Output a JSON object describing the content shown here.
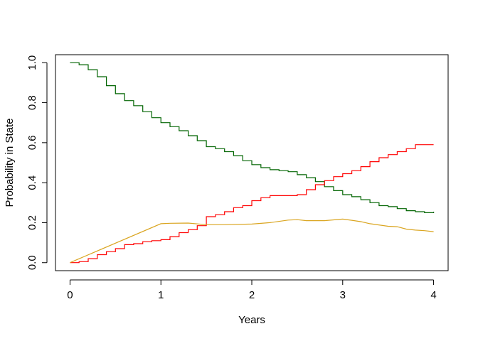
{
  "chart_data": {
    "type": "line",
    "xlabel": "Years",
    "ylabel": "Probability in State",
    "xlim": [
      -0.16,
      4.16
    ],
    "ylim": [
      -0.04,
      1.04
    ],
    "x_ticks": [
      0,
      1,
      2,
      3,
      4
    ],
    "x_tick_labels": [
      "0",
      "1",
      "2",
      "3",
      "4"
    ],
    "y_ticks": [
      0.0,
      0.2,
      0.4,
      0.6,
      0.8,
      1.0
    ],
    "y_tick_labels": [
      "0.0",
      "0.2",
      "0.4",
      "0.6",
      "0.8",
      "1.0"
    ],
    "grid": false,
    "series": [
      {
        "color": "#006400",
        "step": true,
        "points": [
          [
            0,
            1.0
          ],
          [
            0.1,
            0.99
          ],
          [
            0.2,
            0.965
          ],
          [
            0.3,
            0.93
          ],
          [
            0.4,
            0.885
          ],
          [
            0.5,
            0.845
          ],
          [
            0.6,
            0.81
          ],
          [
            0.7,
            0.785
          ],
          [
            0.8,
            0.755
          ],
          [
            0.9,
            0.725
          ],
          [
            1.0,
            0.7
          ],
          [
            1.1,
            0.68
          ],
          [
            1.2,
            0.66
          ],
          [
            1.3,
            0.635
          ],
          [
            1.4,
            0.61
          ],
          [
            1.5,
            0.58
          ],
          [
            1.6,
            0.57
          ],
          [
            1.7,
            0.555
          ],
          [
            1.8,
            0.535
          ],
          [
            1.9,
            0.51
          ],
          [
            2.0,
            0.49
          ],
          [
            2.1,
            0.475
          ],
          [
            2.2,
            0.465
          ],
          [
            2.3,
            0.46
          ],
          [
            2.4,
            0.455
          ],
          [
            2.5,
            0.44
          ],
          [
            2.6,
            0.425
          ],
          [
            2.7,
            0.405
          ],
          [
            2.8,
            0.38
          ],
          [
            2.9,
            0.36
          ],
          [
            3.0,
            0.34
          ],
          [
            3.1,
            0.33
          ],
          [
            3.2,
            0.315
          ],
          [
            3.3,
            0.3
          ],
          [
            3.4,
            0.285
          ],
          [
            3.5,
            0.28
          ],
          [
            3.6,
            0.27
          ],
          [
            3.7,
            0.26
          ],
          [
            3.8,
            0.255
          ],
          [
            3.9,
            0.25
          ],
          [
            4.0,
            0.255
          ]
        ]
      },
      {
        "color": "#ff0000",
        "step": true,
        "points": [
          [
            0,
            0.0
          ],
          [
            0.1,
            0.005
          ],
          [
            0.2,
            0.02
          ],
          [
            0.3,
            0.04
          ],
          [
            0.4,
            0.055
          ],
          [
            0.5,
            0.07
          ],
          [
            0.6,
            0.09
          ],
          [
            0.7,
            0.095
          ],
          [
            0.8,
            0.105
          ],
          [
            0.9,
            0.11
          ],
          [
            1.0,
            0.115
          ],
          [
            1.1,
            0.13
          ],
          [
            1.2,
            0.15
          ],
          [
            1.3,
            0.165
          ],
          [
            1.4,
            0.185
          ],
          [
            1.5,
            0.23
          ],
          [
            1.6,
            0.24
          ],
          [
            1.7,
            0.255
          ],
          [
            1.8,
            0.275
          ],
          [
            1.9,
            0.285
          ],
          [
            2.0,
            0.31
          ],
          [
            2.1,
            0.325
          ],
          [
            2.2,
            0.335
          ],
          [
            2.3,
            0.335
          ],
          [
            2.4,
            0.335
          ],
          [
            2.5,
            0.34
          ],
          [
            2.6,
            0.365
          ],
          [
            2.7,
            0.39
          ],
          [
            2.8,
            0.41
          ],
          [
            2.9,
            0.43
          ],
          [
            3.0,
            0.445
          ],
          [
            3.1,
            0.46
          ],
          [
            3.2,
            0.48
          ],
          [
            3.3,
            0.505
          ],
          [
            3.4,
            0.525
          ],
          [
            3.5,
            0.54
          ],
          [
            3.6,
            0.555
          ],
          [
            3.7,
            0.57
          ],
          [
            3.8,
            0.59
          ],
          [
            3.9,
            0.59
          ],
          [
            4.0,
            0.59
          ]
        ]
      },
      {
        "color": "#daa520",
        "step": false,
        "points": [
          [
            0,
            0.0
          ],
          [
            1.0,
            0.195
          ],
          [
            1.1,
            0.197
          ],
          [
            1.3,
            0.198
          ],
          [
            1.5,
            0.19
          ],
          [
            1.7,
            0.19
          ],
          [
            2.0,
            0.193
          ],
          [
            2.2,
            0.2
          ],
          [
            2.4,
            0.213
          ],
          [
            2.5,
            0.215
          ],
          [
            2.6,
            0.21
          ],
          [
            2.8,
            0.21
          ],
          [
            3.0,
            0.218
          ],
          [
            3.1,
            0.212
          ],
          [
            3.2,
            0.205
          ],
          [
            3.3,
            0.195
          ],
          [
            3.5,
            0.182
          ],
          [
            3.6,
            0.18
          ],
          [
            3.7,
            0.168
          ],
          [
            3.8,
            0.163
          ],
          [
            3.9,
            0.16
          ],
          [
            4.0,
            0.155
          ]
        ]
      }
    ]
  }
}
